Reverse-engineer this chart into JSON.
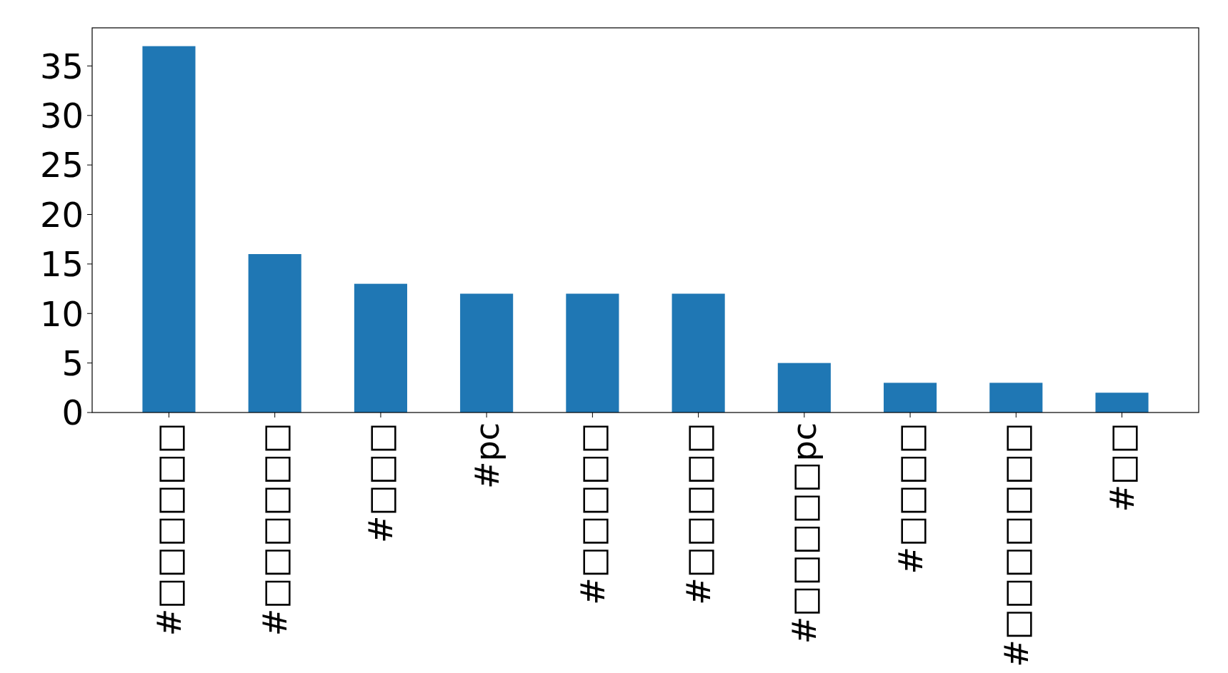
{
  "chart_data": {
    "type": "bar",
    "categories": [
      "#□□□□□□",
      "#□□□□□□",
      "#□□□",
      "#pc",
      "#□□□□□",
      "#□□□□□",
      "#□□□□□pc",
      "#□□□□",
      "#□□□□□□□",
      "#□□"
    ],
    "values": [
      37,
      16,
      13,
      12,
      12,
      12,
      5,
      3,
      3,
      2
    ],
    "color": "#1f77b4",
    "ylim": [
      0,
      38.85
    ],
    "yticks": [
      0,
      5,
      10,
      15,
      20,
      25,
      30,
      35
    ],
    "grid": false
  }
}
